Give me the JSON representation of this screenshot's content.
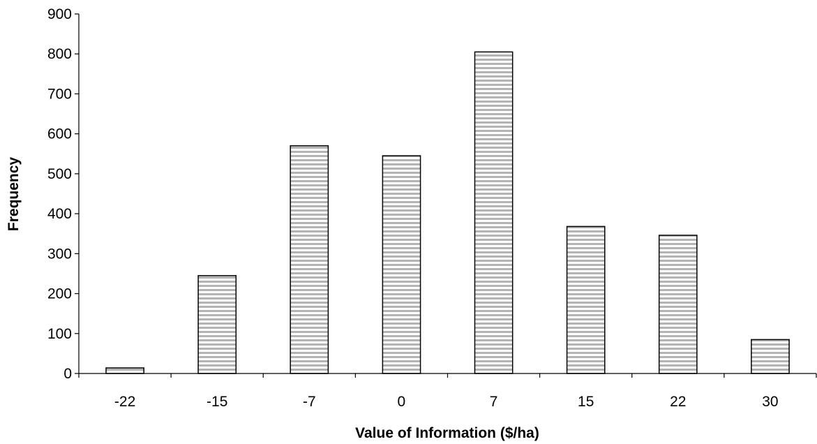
{
  "chart_data": {
    "type": "bar",
    "title": "",
    "xlabel": "Value of Information ($/ha)",
    "ylabel": "Frequency",
    "categories": [
      "-22",
      "-15",
      "-7",
      "0",
      "7",
      "15",
      "22",
      "30"
    ],
    "values": [
      14,
      245,
      570,
      545,
      805,
      368,
      346,
      85
    ],
    "ylim": [
      0,
      900
    ],
    "yticks": [
      0,
      100,
      200,
      300,
      400,
      500,
      600,
      700,
      800,
      900
    ],
    "grid": false,
    "legend": "none",
    "bar_fill": "hatched-horizontal-gray",
    "colors": {
      "bar_stripe": "#b4b4b4",
      "bar_background": "#ffffff",
      "bar_outline": "#000000",
      "axis": "#000000"
    }
  }
}
